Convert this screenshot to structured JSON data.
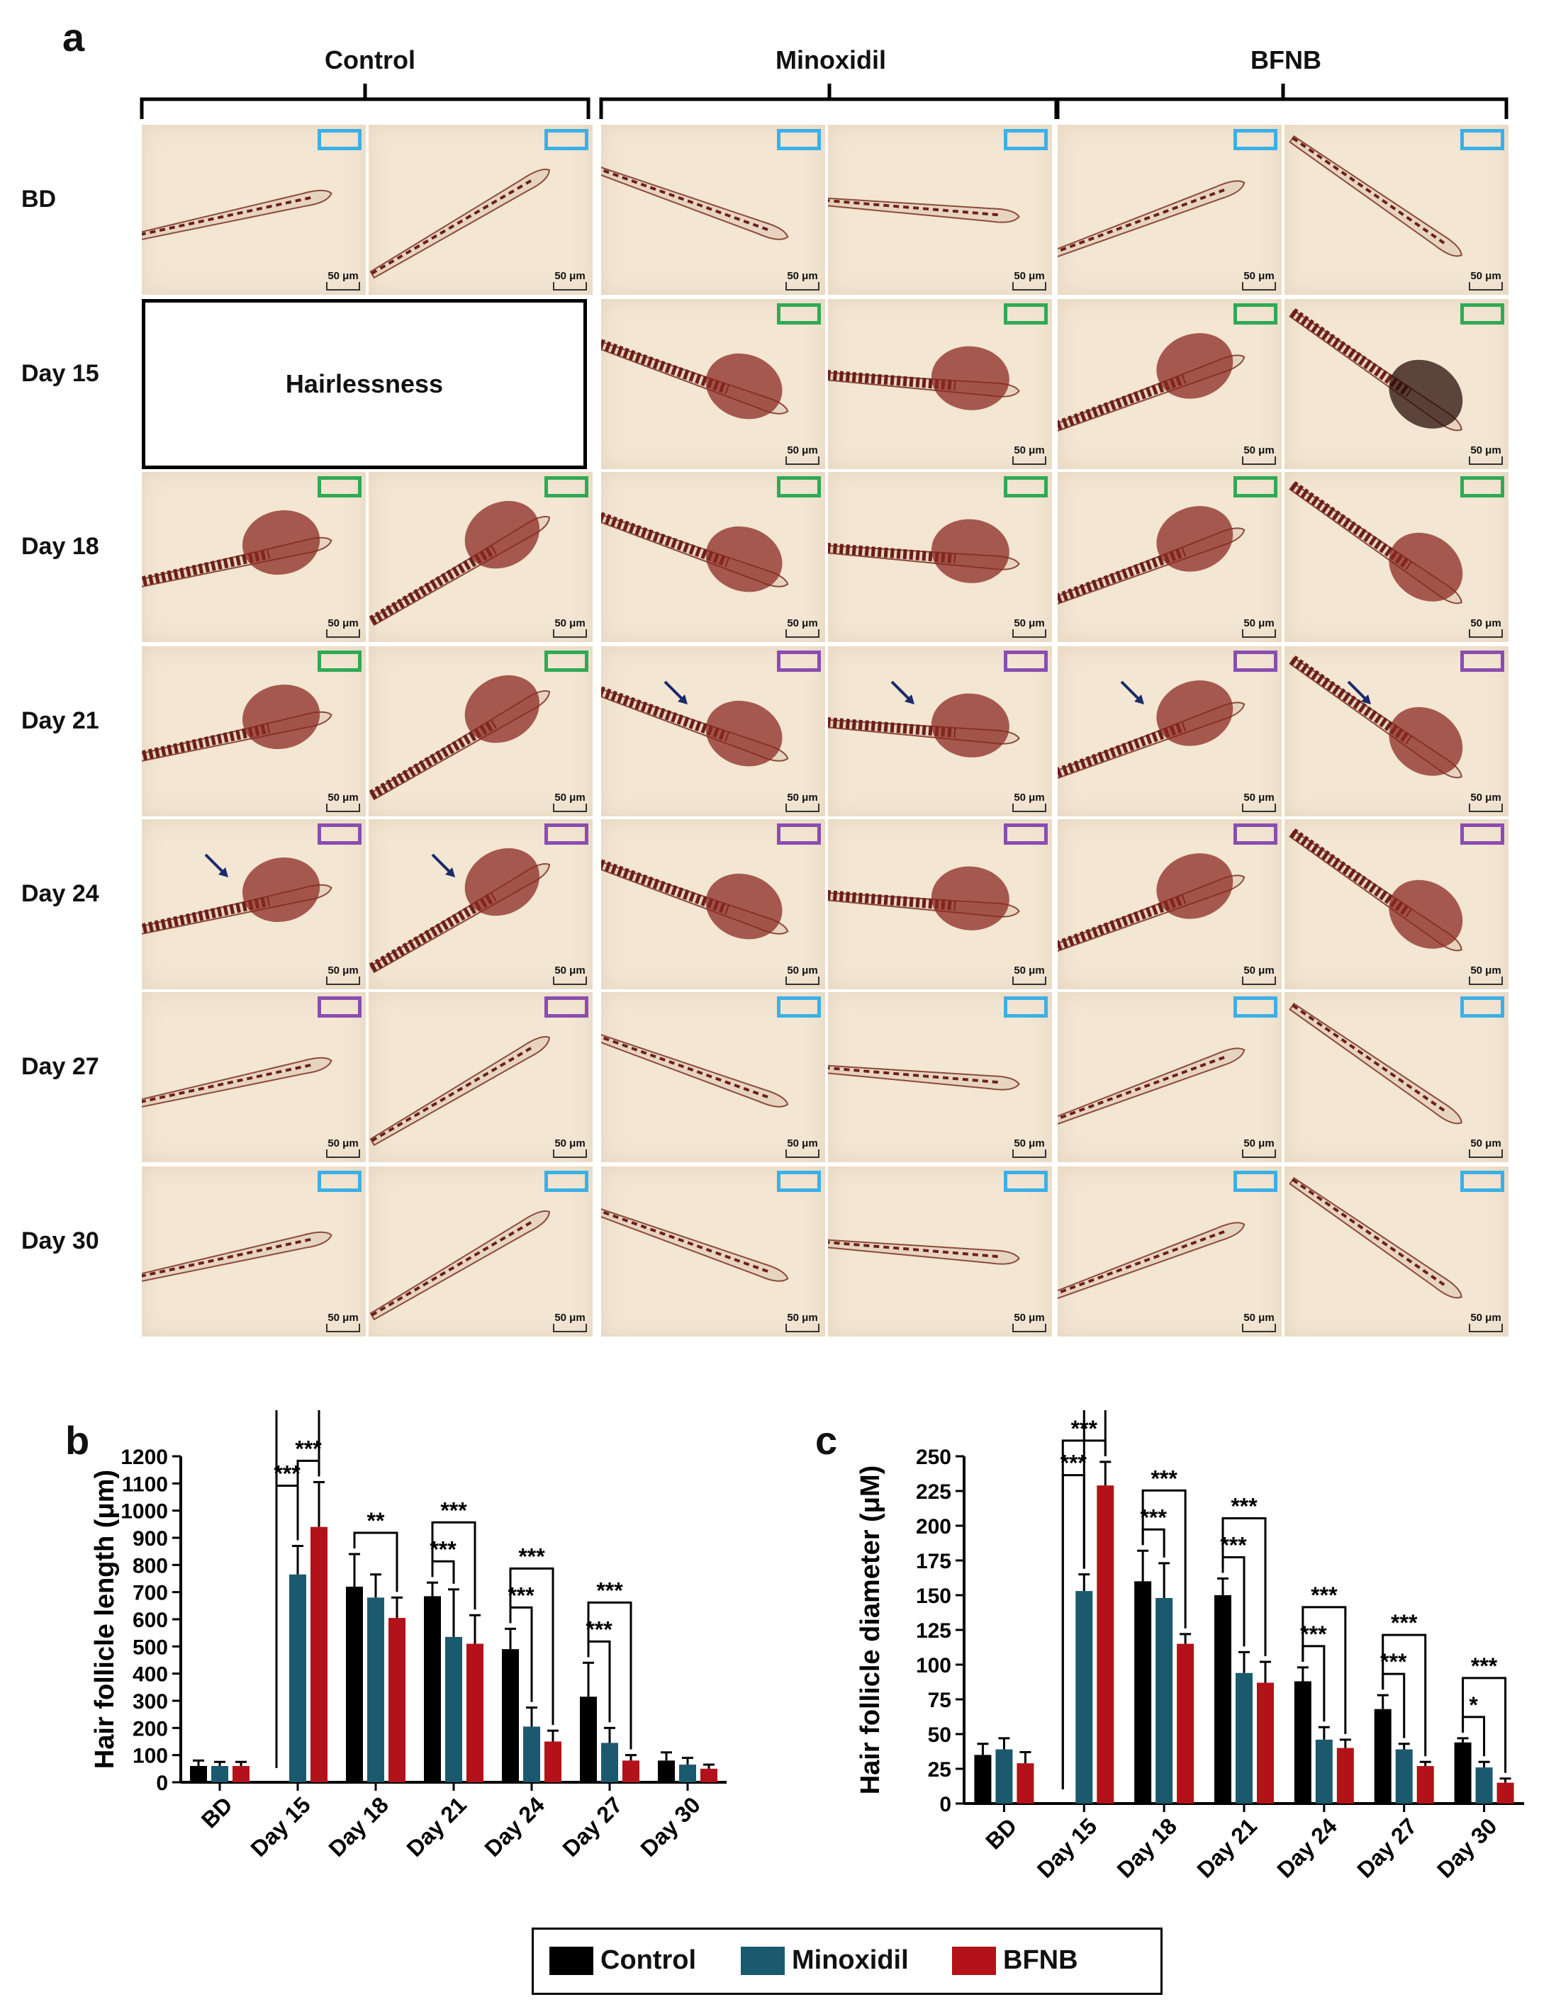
{
  "panel_labels": {
    "a": "a",
    "b": "b",
    "c": "c"
  },
  "panel_a": {
    "groups": [
      "Control",
      "Minoxidil",
      "BFNB"
    ],
    "rows": [
      "BD",
      "Day 15",
      "Day 18",
      "Day 21",
      "Day 24",
      "Day 27",
      "Day 30"
    ],
    "hairlessness_label": "Hairlessness",
    "scale_bar_label": "50 μm",
    "stage_colors": {
      "cyan": "#3bb0e6",
      "green": "#2faa55",
      "purple": "#8a4db0"
    },
    "stage_map": [
      [
        "cyan",
        "cyan",
        "cyan",
        "cyan",
        "cyan",
        "cyan"
      ],
      [
        null,
        null,
        "green",
        "green",
        "green",
        "green"
      ],
      [
        "green",
        "green",
        "green",
        "green",
        "green",
        "green"
      ],
      [
        "green",
        "green",
        "purple",
        "purple",
        "purple",
        "purple"
      ],
      [
        "purple",
        "purple",
        "purple",
        "purple",
        "purple",
        "purple"
      ],
      [
        "purple",
        "purple",
        "cyan",
        "cyan",
        "cyan",
        "cyan"
      ],
      [
        "cyan",
        "cyan",
        "cyan",
        "cyan",
        "cyan",
        "cyan"
      ]
    ],
    "arrows_present": [
      [
        0,
        0,
        0,
        0,
        0,
        0
      ],
      [
        0,
        0,
        0,
        0,
        0,
        0
      ],
      [
        0,
        0,
        0,
        0,
        0,
        0
      ],
      [
        0,
        0,
        1,
        1,
        1,
        1
      ],
      [
        1,
        1,
        0,
        0,
        0,
        0
      ],
      [
        0,
        0,
        0,
        0,
        0,
        0
      ],
      [
        0,
        0,
        0,
        0,
        0,
        0
      ]
    ]
  },
  "colors": {
    "control": "#000000",
    "minoxidil": "#1b5a6e",
    "bfnb": "#b3121a"
  },
  "legend": [
    "Control",
    "Minoxidil",
    "BFNB"
  ],
  "chart_data": [
    {
      "type": "bar",
      "panel": "b",
      "ylabel": "Hair follicle length (μm)",
      "xlabel": "",
      "categories": [
        "BD",
        "Day 15",
        "Day 18",
        "Day 21",
        "Day 24",
        "Day 27",
        "Day 30"
      ],
      "ylim": [
        0,
        1200
      ],
      "yticks": [
        0,
        100,
        200,
        300,
        400,
        500,
        600,
        700,
        800,
        900,
        1000,
        1100,
        1200
      ],
      "series": [
        {
          "name": "Control",
          "values": [
            60,
            null,
            720,
            685,
            490,
            315,
            80
          ],
          "errors": [
            20,
            null,
            120,
            50,
            75,
            125,
            30
          ]
        },
        {
          "name": "Minoxidil",
          "values": [
            60,
            765,
            680,
            535,
            205,
            145,
            65
          ],
          "errors": [
            15,
            105,
            85,
            175,
            70,
            55,
            25
          ]
        },
        {
          "name": "BFNB",
          "values": [
            60,
            940,
            605,
            510,
            150,
            80,
            50
          ],
          "errors": [
            15,
            165,
            75,
            105,
            40,
            20,
            15
          ]
        }
      ],
      "significance": [
        {
          "category": "Day 15",
          "from": "Minoxidil",
          "to": "BFNB",
          "label": "***"
        },
        {
          "category": "Day 15",
          "from": "Control",
          "to": "Minoxidil",
          "label": "***"
        },
        {
          "category": "Day 15",
          "from": "Control",
          "to": "BFNB",
          "label": "***"
        },
        {
          "category": "Day 18",
          "from": "Control",
          "to": "BFNB",
          "label": "**"
        },
        {
          "category": "Day 21",
          "from": "Control",
          "to": "Minoxidil",
          "label": "***"
        },
        {
          "category": "Day 21",
          "from": "Control",
          "to": "BFNB",
          "label": "***"
        },
        {
          "category": "Day 24",
          "from": "Control",
          "to": "Minoxidil",
          "label": "***"
        },
        {
          "category": "Day 24",
          "from": "Control",
          "to": "BFNB",
          "label": "***"
        },
        {
          "category": "Day 27",
          "from": "Control",
          "to": "Minoxidil",
          "label": "***"
        },
        {
          "category": "Day 27",
          "from": "Control",
          "to": "BFNB",
          "label": "***"
        }
      ]
    },
    {
      "type": "bar",
      "panel": "c",
      "ylabel": "Hair follicle diameter (μM)",
      "xlabel": "",
      "categories": [
        "BD",
        "Day 15",
        "Day 18",
        "Day 21",
        "Day 24",
        "Day 27",
        "Day 30"
      ],
      "ylim": [
        0,
        250
      ],
      "yticks": [
        0,
        25,
        50,
        75,
        100,
        125,
        150,
        175,
        200,
        225,
        250
      ],
      "series": [
        {
          "name": "Control",
          "values": [
            35,
            null,
            160,
            150,
            88,
            68,
            44
          ],
          "errors": [
            8,
            null,
            22,
            12,
            10,
            10,
            3
          ]
        },
        {
          "name": "Minoxidil",
          "values": [
            39,
            153,
            148,
            94,
            46,
            39,
            26
          ],
          "errors": [
            8,
            12,
            25,
            15,
            9,
            4,
            4
          ]
        },
        {
          "name": "BFNB",
          "values": [
            29,
            229,
            115,
            87,
            40,
            27,
            15
          ],
          "errors": [
            8,
            17,
            7,
            15,
            6,
            3,
            3
          ]
        }
      ],
      "significance": [
        {
          "category": "Day 15",
          "from": "Control",
          "to": "BFNB",
          "label": "***"
        },
        {
          "category": "Day 15",
          "from": "Minoxidil",
          "to": "BFNB",
          "label": "***"
        },
        {
          "category": "Day 15",
          "from": "Control",
          "to": "Minoxidil",
          "label": "***"
        },
        {
          "category": "Day 18",
          "from": "Control",
          "to": "Minoxidil",
          "label": "***"
        },
        {
          "category": "Day 18",
          "from": "Control",
          "to": "BFNB",
          "label": "***"
        },
        {
          "category": "Day 21",
          "from": "Control",
          "to": "Minoxidil",
          "label": "***"
        },
        {
          "category": "Day 21",
          "from": "Control",
          "to": "BFNB",
          "label": "***"
        },
        {
          "category": "Day 24",
          "from": "Control",
          "to": "Minoxidil",
          "label": "***"
        },
        {
          "category": "Day 24",
          "from": "Control",
          "to": "BFNB",
          "label": "***"
        },
        {
          "category": "Day 27",
          "from": "Control",
          "to": "Minoxidil",
          "label": "***"
        },
        {
          "category": "Day 27",
          "from": "Control",
          "to": "BFNB",
          "label": "***"
        },
        {
          "category": "Day 30",
          "from": "Control",
          "to": "Minoxidil",
          "label": "*"
        },
        {
          "category": "Day 30",
          "from": "Control",
          "to": "BFNB",
          "label": "***"
        }
      ]
    }
  ]
}
